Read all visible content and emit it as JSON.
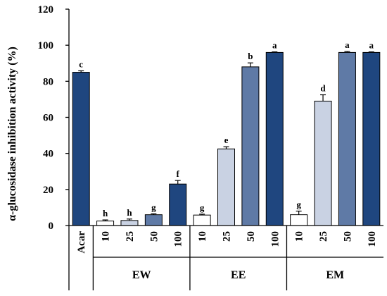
{
  "chart_data": {
    "type": "bar",
    "title": "",
    "xlabel": "",
    "ylabel": "α-glucosidase inhibition activity (%)",
    "ylim": [
      0,
      120
    ],
    "yticks": [
      "0",
      "20",
      "40",
      "60",
      "80",
      "100",
      "120"
    ],
    "grid": false,
    "colors": {
      "light": "#c9d2e3",
      "medium": "#5f7aa6",
      "dark": "#1f467f",
      "white": "#ffffff",
      "outline": "#000000"
    },
    "bars": [
      {
        "group": "",
        "label": "Acar",
        "value": 85.0,
        "error": 0.8,
        "sig": "c",
        "shade": "dark"
      },
      {
        "group": "EW",
        "label": "10",
        "value": 2.5,
        "error": 0.6,
        "sig": "h",
        "shade": "white"
      },
      {
        "group": "EW",
        "label": "25",
        "value": 2.8,
        "error": 0.8,
        "sig": "h",
        "shade": "light"
      },
      {
        "group": "EW",
        "label": "50",
        "value": 6.0,
        "error": 0.5,
        "sig": "g",
        "shade": "medium"
      },
      {
        "group": "EW",
        "label": "100",
        "value": 23.0,
        "error": 2.0,
        "sig": "f",
        "shade": "dark"
      },
      {
        "group": "EE",
        "label": "10",
        "value": 5.8,
        "error": 0.5,
        "sig": "g",
        "shade": "white"
      },
      {
        "group": "EE",
        "label": "25",
        "value": 42.5,
        "error": 1.2,
        "sig": "e",
        "shade": "light"
      },
      {
        "group": "EE",
        "label": "50",
        "value": 88.0,
        "error": 2.2,
        "sig": "b",
        "shade": "medium"
      },
      {
        "group": "EE",
        "label": "100",
        "value": 96.0,
        "error": 0.3,
        "sig": "a",
        "shade": "dark"
      },
      {
        "group": "EM",
        "label": "10",
        "value": 6.0,
        "error": 2.0,
        "sig": "g",
        "shade": "white"
      },
      {
        "group": "EM",
        "label": "25",
        "value": 69.0,
        "error": 3.5,
        "sig": "d",
        "shade": "light"
      },
      {
        "group": "EM",
        "label": "50",
        "value": 96.0,
        "error": 0.5,
        "sig": "a",
        "shade": "medium"
      },
      {
        "group": "EM",
        "label": "100",
        "value": 96.0,
        "error": 0.3,
        "sig": "a",
        "shade": "dark"
      }
    ],
    "groups": [
      "EW",
      "EE",
      "EM"
    ]
  }
}
